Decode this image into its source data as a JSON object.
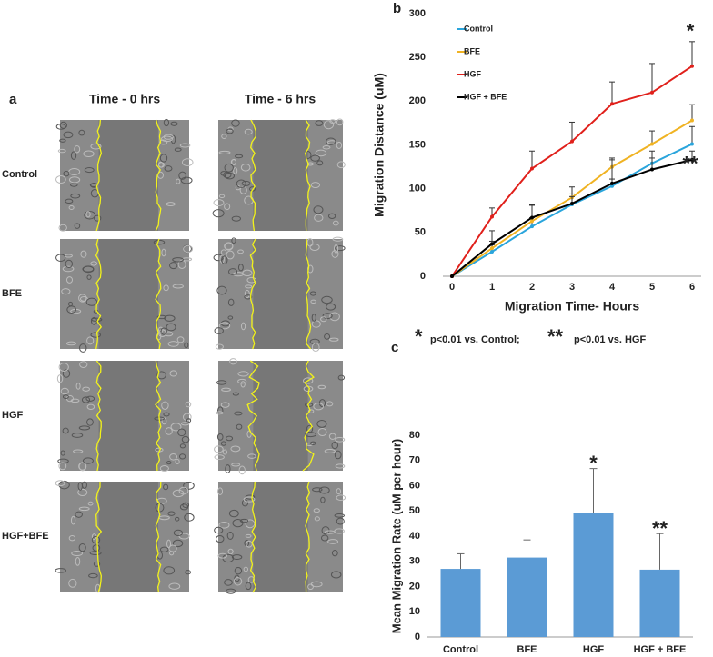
{
  "panel_a": {
    "label": "a",
    "columns": [
      "Time - 0 hrs",
      "Time - 6 hrs"
    ],
    "rows": [
      "Control",
      "BFE",
      "HGF",
      "HGF+BFE"
    ]
  },
  "note": [
    "*",
    "p<0.01 vs. Control;",
    "**",
    "p<0.01 vs. HGF"
  ],
  "chart_data": [
    {
      "type": "line",
      "panel": "b",
      "x_label": "Migration Time- Hours",
      "y_label": "Migration Distance (uM)",
      "x": [
        0,
        1,
        2,
        3,
        4,
        5,
        6
      ],
      "xlim": [
        0,
        6
      ],
      "xticks": [
        0,
        1,
        2,
        3,
        4,
        5,
        6
      ],
      "ylim": [
        0,
        300
      ],
      "yticks": [
        0,
        50,
        100,
        150,
        200,
        250,
        300
      ],
      "series": [
        {
          "name": "Control",
          "color": "#2aa5dc",
          "values": [
            0,
            28,
            57,
            82,
            103,
            129,
            151
          ],
          "errors": [
            0,
            8,
            10,
            12,
            8,
            14,
            20
          ]
        },
        {
          "name": "BFE",
          "color": "#f0b323",
          "values": [
            0,
            32,
            63,
            90,
            125,
            151,
            178
          ],
          "errors": [
            0,
            8,
            18,
            12,
            10,
            15,
            18
          ]
        },
        {
          "name": "HGF",
          "color": "#e0201b",
          "values": [
            0,
            68,
            123,
            154,
            197,
            210,
            240
          ],
          "errors": [
            0,
            10,
            20,
            22,
            25,
            33,
            28
          ]
        },
        {
          "name": "HGF + BFE",
          "color": "#000000",
          "values": [
            0,
            37,
            67,
            83,
            106,
            122,
            133
          ],
          "errors": [
            0,
            15,
            15,
            8,
            27,
            13,
            10
          ]
        }
      ],
      "annotations": [
        {
          "text": "*",
          "x": 6,
          "y": 285
        },
        {
          "text": "**",
          "x": 6,
          "y": 133
        }
      ]
    },
    {
      "type": "bar",
      "panel": "c",
      "y_label": "Mean Migration Rate (uM per hour)",
      "categories": [
        "Control",
        "BFE",
        "HGF",
        "HGF + BFE"
      ],
      "values": [
        27,
        31.5,
        49.3,
        26.7
      ],
      "errors": [
        6,
        7,
        17.5,
        14.3
      ],
      "color": "#5b9bd5",
      "ylim": [
        0,
        80
      ],
      "yticks": [
        0,
        10,
        20,
        30,
        40,
        50,
        60,
        70,
        80
      ],
      "annotations": [
        {
          "text": "*",
          "category": 2,
          "y": 71
        },
        {
          "text": "**",
          "category": 3,
          "y": 45
        }
      ]
    }
  ]
}
